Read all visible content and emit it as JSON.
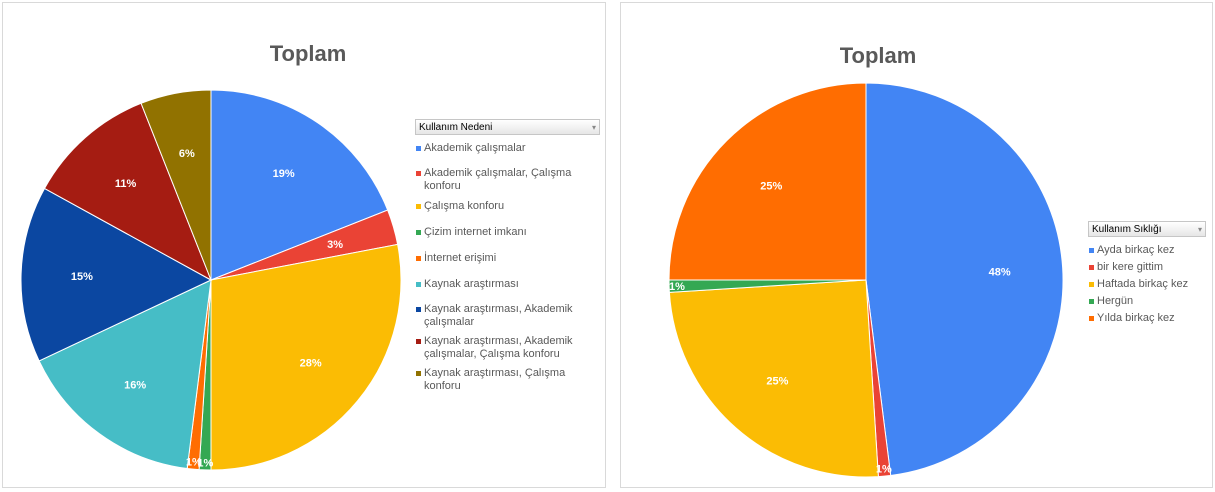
{
  "chart_data": [
    {
      "type": "pie",
      "title": "Toplam",
      "legend_title": "Kullanım Nedeni",
      "legend_position": "right",
      "slices": [
        {
          "label": "Akademik çalışmalar",
          "value": 19,
          "display": "19%",
          "color": "#4285F4"
        },
        {
          "label": "Akademik çalışmalar, Çalışma konforu",
          "value": 3,
          "display": "3%",
          "color": "#EA4335"
        },
        {
          "label": "Çalışma konforu",
          "value": 28,
          "display": "28%",
          "color": "#FBBC04"
        },
        {
          "label": "Çizim internet imkanı",
          "value": 1,
          "display": "1%",
          "color": "#34A853"
        },
        {
          "label": "İnternet erişimi",
          "value": 1,
          "display": "1%",
          "color": "#FF6D01"
        },
        {
          "label": "Kaynak araştırması",
          "value": 16,
          "display": "16%",
          "color": "#46BDC6"
        },
        {
          "label": "Kaynak araştırması, Akademik çalışmalar",
          "value": 15,
          "display": "15%",
          "color": "#0B47A1"
        },
        {
          "label": "Kaynak araştırması, Akademik çalışmalar, Çalışma konforu",
          "value": 11,
          "display": "11%",
          "color": "#A51C12"
        },
        {
          "label": "Kaynak araştırması, Çalışma konforu",
          "value": 6,
          "display": "6%",
          "color": "#917200"
        }
      ]
    },
    {
      "type": "pie",
      "title": "Toplam",
      "legend_title": "Kullanım Sıklığı",
      "legend_position": "right",
      "slices": [
        {
          "label": "Ayda birkaç kez",
          "value": 48,
          "display": "48%",
          "color": "#4285F4"
        },
        {
          "label": "bir kere gittim",
          "value": 1,
          "display": "1%",
          "color": "#EA4335"
        },
        {
          "label": "Haftada birkaç kez",
          "value": 25,
          "display": "25%",
          "color": "#FBBC04"
        },
        {
          "label": "Hergün",
          "value": 1,
          "display": "1%",
          "color": "#34A853"
        },
        {
          "label": "Yılda birkaç kez",
          "value": 25,
          "display": "25%",
          "color": "#FF6D01"
        }
      ]
    }
  ]
}
